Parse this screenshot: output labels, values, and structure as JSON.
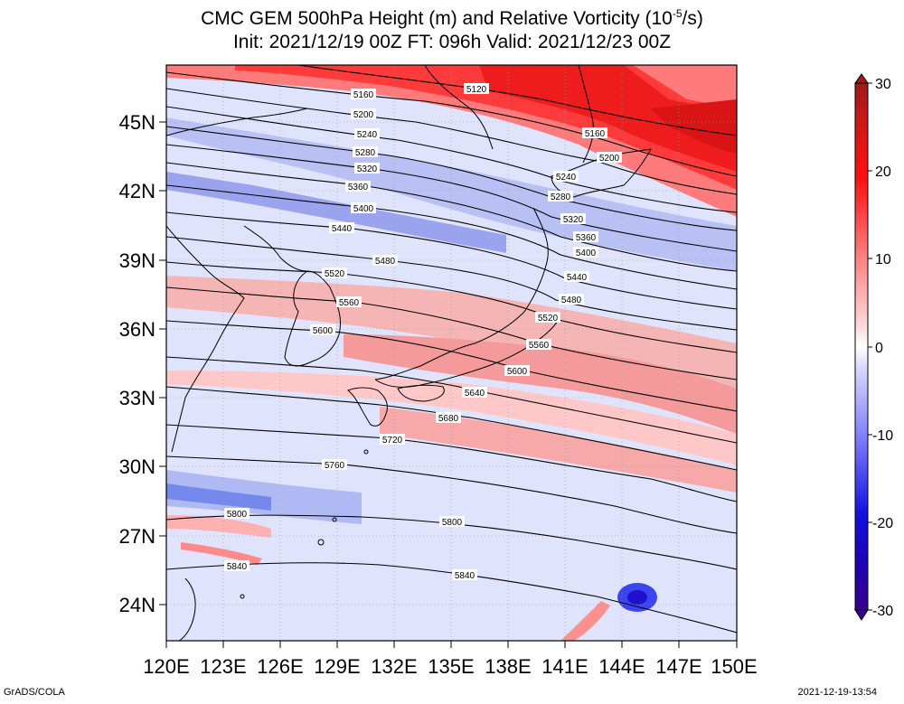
{
  "title": {
    "line1_prefix": "CMC GEM 500hPa Height (m) and Relative Vorticity (10",
    "line1_exp": "-5",
    "line1_suffix": "/s)",
    "line2": "Init: 2021/12/19 00Z  FT: 096h  Valid: 2021/12/23 00Z"
  },
  "axes": {
    "lat_labels": [
      "45N",
      "42N",
      "39N",
      "36N",
      "33N",
      "30N",
      "27N",
      "24N"
    ],
    "lon_labels": [
      "120E",
      "123E",
      "126E",
      "129E",
      "132E",
      "135E",
      "138E",
      "141E",
      "144E",
      "147E",
      "150E"
    ],
    "lat_range": [
      22.5,
      47.5
    ],
    "lon_range": [
      120,
      150
    ]
  },
  "colorbar": {
    "tick_labels": [
      "30",
      "20",
      "10",
      "0",
      "-10",
      "-20",
      "-30"
    ],
    "range": [
      -30,
      30
    ],
    "colors": {
      "max": "#b01010",
      "high": "#ff2020",
      "zero": "#ffffff",
      "low": "#2020ff",
      "min": "#2a00a0"
    }
  },
  "contour_labels": [
    "5120",
    "5160",
    "5200",
    "5240",
    "5280",
    "5320",
    "5360",
    "5400",
    "5440",
    "5480",
    "5520",
    "5560",
    "5600",
    "5640",
    "5680",
    "5720",
    "5760",
    "5800",
    "5840",
    "5160",
    "5200",
    "5240",
    "5280",
    "5320",
    "5360",
    "5400",
    "5440",
    "5480",
    "5520",
    "5560",
    "5600",
    "5800",
    "5840"
  ],
  "footer": {
    "left": "GrADS/COLA",
    "right": "2021-12-19-13:54"
  }
}
